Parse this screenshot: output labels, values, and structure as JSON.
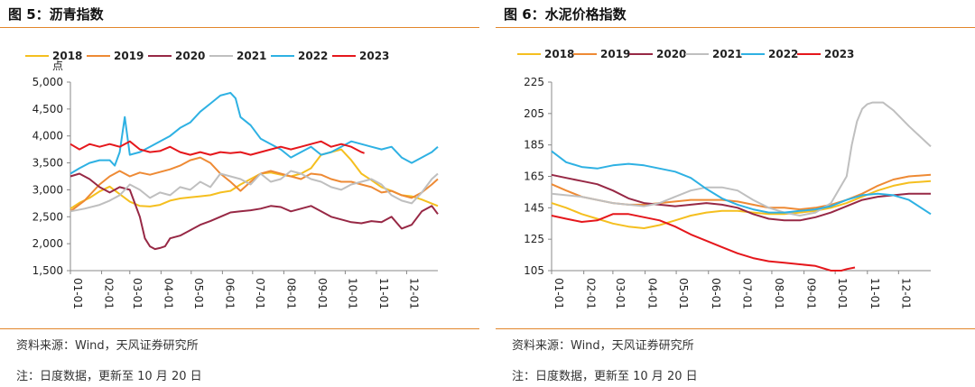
{
  "panels": [
    {
      "title": "图 5：沥青指数",
      "source": "资料来源：Wind，天风证券研究所",
      "note": "注：日度数据，更新至 10 月 20 日"
    },
    {
      "title": "图 6：水泥价格指数",
      "source": "资料来源：Wind，天风证券研究所",
      "note": "注：日度数据，更新至 10 月 20 日"
    }
  ],
  "colors": {
    "2018": "#f5bf1f",
    "2019": "#ee8a34",
    "2020": "#972845",
    "2021": "#bfbfbf",
    "2022": "#2eb1e3",
    "2023": "#e5171c",
    "rule": "#e2862a"
  },
  "chart_data": [
    {
      "type": "line",
      "title": "图 5：沥青指数",
      "ylabel": "点",
      "ylim": [
        1500,
        5000
      ],
      "yticks": [
        1500,
        2000,
        2500,
        3000,
        3500,
        4000,
        4500,
        5000
      ],
      "ytick_labels": [
        "1,500",
        "2,000",
        "2,500",
        "3,000",
        "3,500",
        "4,000",
        "4,500",
        "5,000"
      ],
      "x_ticks": [
        "01-01",
        "02-01",
        "03-01",
        "04-01",
        "05-01",
        "06-01",
        "07-01",
        "08-01",
        "09-01",
        "10-01",
        "11-01",
        "12-01"
      ],
      "xlim_days": [
        1,
        366
      ],
      "legend": "top",
      "series": [
        {
          "name": "2018",
          "x": [
            1,
            10,
            20,
            30,
            40,
            50,
            60,
            70,
            80,
            90,
            100,
            110,
            120,
            130,
            140,
            150,
            160,
            170,
            180,
            190,
            200,
            210,
            220,
            230,
            240,
            250,
            260,
            270,
            280,
            290,
            300,
            310,
            320,
            330,
            340,
            350,
            366
          ],
          "values": [
            2650,
            2760,
            2850,
            2970,
            3060,
            2920,
            2780,
            2700,
            2690,
            2720,
            2800,
            2840,
            2860,
            2880,
            2900,
            2950,
            2980,
            3100,
            3200,
            3300,
            3320,
            3280,
            3250,
            3300,
            3400,
            3650,
            3700,
            3750,
            3550,
            3300,
            3180,
            3050,
            2980,
            2900,
            2880,
            2820,
            2700
          ]
        },
        {
          "name": "2019",
          "x": [
            1,
            15,
            30,
            40,
            50,
            60,
            70,
            80,
            90,
            100,
            110,
            120,
            130,
            140,
            150,
            160,
            170,
            180,
            190,
            200,
            210,
            220,
            230,
            240,
            250,
            260,
            270,
            280,
            290,
            300,
            310,
            320,
            330,
            340,
            350,
            360,
            366
          ],
          "values": [
            2600,
            2800,
            3100,
            3250,
            3350,
            3250,
            3320,
            3280,
            3330,
            3380,
            3450,
            3550,
            3600,
            3500,
            3300,
            3150,
            2980,
            3150,
            3300,
            3350,
            3300,
            3250,
            3200,
            3300,
            3280,
            3200,
            3150,
            3150,
            3100,
            3050,
            2950,
            2980,
            2900,
            2850,
            2950,
            3100,
            3200
          ]
        },
        {
          "name": "2020",
          "x": [
            1,
            10,
            20,
            30,
            40,
            50,
            60,
            70,
            75,
            80,
            85,
            90,
            95,
            100,
            110,
            120,
            130,
            140,
            150,
            160,
            170,
            180,
            190,
            200,
            210,
            220,
            230,
            240,
            250,
            260,
            270,
            280,
            290,
            300,
            310,
            320,
            330,
            340,
            350,
            360,
            366
          ],
          "values": [
            3250,
            3300,
            3200,
            3050,
            2950,
            3050,
            3000,
            2500,
            2100,
            1950,
            1900,
            1920,
            1950,
            2100,
            2150,
            2250,
            2350,
            2420,
            2500,
            2580,
            2600,
            2620,
            2650,
            2700,
            2680,
            2600,
            2650,
            2700,
            2600,
            2500,
            2450,
            2400,
            2380,
            2420,
            2400,
            2500,
            2280,
            2350,
            2600,
            2700,
            2550
          ]
        },
        {
          "name": "2021",
          "x": [
            1,
            15,
            30,
            40,
            50,
            60,
            70,
            80,
            90,
            100,
            110,
            120,
            130,
            140,
            150,
            160,
            170,
            180,
            190,
            200,
            210,
            220,
            230,
            240,
            250,
            260,
            270,
            280,
            290,
            300,
            310,
            320,
            330,
            340,
            350,
            360,
            366
          ],
          "values": [
            2600,
            2650,
            2720,
            2800,
            2900,
            3100,
            3000,
            2850,
            2950,
            2900,
            3050,
            3000,
            3150,
            3050,
            3300,
            3250,
            3200,
            3100,
            3300,
            3150,
            3200,
            3350,
            3300,
            3200,
            3150,
            3050,
            3000,
            3100,
            3150,
            3200,
            3100,
            2900,
            2800,
            2750,
            2950,
            3200,
            3300
          ]
        },
        {
          "name": "2022",
          "x": [
            1,
            10,
            20,
            30,
            40,
            45,
            50,
            55,
            60,
            70,
            80,
            90,
            100,
            110,
            120,
            130,
            140,
            150,
            160,
            165,
            170,
            180,
            190,
            200,
            210,
            220,
            230,
            240,
            250,
            260,
            270,
            280,
            290,
            300,
            310,
            320,
            330,
            340,
            350,
            360,
            366
          ],
          "values": [
            3300,
            3400,
            3500,
            3550,
            3550,
            3450,
            3700,
            4350,
            3650,
            3700,
            3800,
            3900,
            4000,
            4150,
            4250,
            4450,
            4600,
            4750,
            4800,
            4700,
            4350,
            4200,
            3950,
            3850,
            3750,
            3600,
            3700,
            3800,
            3650,
            3700,
            3800,
            3900,
            3850,
            3800,
            3750,
            3800,
            3600,
            3500,
            3600,
            3700,
            3800
          ]
        },
        {
          "name": "2023",
          "x": [
            1,
            10,
            20,
            30,
            40,
            50,
            60,
            70,
            80,
            90,
            100,
            110,
            120,
            130,
            140,
            150,
            160,
            170,
            180,
            190,
            200,
            210,
            220,
            230,
            240,
            250,
            260,
            270,
            280,
            290,
            293
          ],
          "values": [
            3850,
            3750,
            3850,
            3800,
            3850,
            3800,
            3900,
            3750,
            3700,
            3720,
            3800,
            3700,
            3650,
            3700,
            3650,
            3700,
            3680,
            3700,
            3650,
            3700,
            3750,
            3800,
            3750,
            3800,
            3850,
            3900,
            3800,
            3850,
            3800,
            3700,
            3680
          ]
        }
      ]
    },
    {
      "type": "line",
      "title": "图 6：水泥价格指数",
      "ylim": [
        105,
        225
      ],
      "yticks": [
        105,
        125,
        145,
        165,
        185,
        205,
        225
      ],
      "ytick_labels": [
        "105",
        "125",
        "145",
        "165",
        "185",
        "205",
        "225"
      ],
      "x_ticks": [
        "01-01",
        "02-01",
        "03-01",
        "04-01",
        "05-01",
        "06-01",
        "07-01",
        "08-01",
        "09-01",
        "10-01",
        "11-01",
        "12-01"
      ],
      "xlim_days": [
        1,
        366
      ],
      "legend": "top",
      "series": [
        {
          "name": "2018",
          "x": [
            1,
            15,
            30,
            45,
            60,
            75,
            90,
            105,
            120,
            135,
            150,
            165,
            180,
            195,
            210,
            225,
            240,
            255,
            270,
            285,
            300,
            315,
            330,
            345,
            366
          ],
          "values": [
            148,
            145,
            141,
            138,
            135,
            133,
            132,
            134,
            137,
            140,
            142,
            143,
            143,
            142,
            141,
            141,
            142,
            143,
            145,
            148,
            152,
            156,
            159,
            161,
            162
          ]
        },
        {
          "name": "2019",
          "x": [
            1,
            15,
            30,
            45,
            60,
            75,
            90,
            105,
            120,
            135,
            150,
            165,
            180,
            195,
            210,
            225,
            240,
            255,
            270,
            285,
            300,
            315,
            330,
            345,
            366
          ],
          "values": [
            160,
            156,
            152,
            150,
            148,
            147,
            147,
            148,
            149,
            150,
            150,
            150,
            149,
            147,
            145,
            145,
            144,
            145,
            147,
            150,
            154,
            159,
            163,
            165,
            166
          ]
        },
        {
          "name": "2020",
          "x": [
            1,
            15,
            30,
            45,
            60,
            75,
            90,
            105,
            120,
            135,
            150,
            165,
            180,
            195,
            210,
            225,
            240,
            255,
            270,
            285,
            300,
            315,
            330,
            345,
            366
          ],
          "values": [
            166,
            164,
            162,
            160,
            156,
            151,
            148,
            147,
            146,
            147,
            148,
            147,
            145,
            141,
            138,
            137,
            137,
            139,
            142,
            146,
            150,
            152,
            153,
            154,
            154
          ]
        },
        {
          "name": "2021",
          "x": [
            1,
            15,
            30,
            45,
            60,
            75,
            90,
            105,
            120,
            135,
            150,
            165,
            180,
            195,
            210,
            225,
            240,
            255,
            270,
            285,
            290,
            295,
            300,
            305,
            310,
            320,
            330,
            345,
            366
          ],
          "values": [
            154,
            153,
            152,
            150,
            148,
            147,
            146,
            148,
            152,
            156,
            158,
            158,
            156,
            150,
            145,
            142,
            140,
            142,
            148,
            165,
            185,
            200,
            208,
            211,
            212,
            212,
            207,
            197,
            184
          ]
        },
        {
          "name": "2022",
          "x": [
            1,
            15,
            30,
            45,
            60,
            75,
            90,
            105,
            120,
            135,
            150,
            165,
            180,
            195,
            210,
            225,
            240,
            255,
            270,
            285,
            300,
            315,
            330,
            345,
            366
          ],
          "values": [
            181,
            174,
            171,
            170,
            172,
            173,
            172,
            170,
            168,
            164,
            157,
            151,
            147,
            144,
            142,
            142,
            143,
            144,
            146,
            150,
            153,
            154,
            153,
            150,
            141
          ]
        },
        {
          "name": "2023",
          "x": [
            1,
            15,
            30,
            45,
            60,
            75,
            90,
            105,
            120,
            135,
            150,
            165,
            180,
            195,
            210,
            225,
            240,
            255,
            270,
            280,
            285,
            293
          ],
          "values": [
            140,
            138,
            136,
            137,
            141,
            141,
            139,
            137,
            133,
            128,
            124,
            120,
            116,
            113,
            111,
            110,
            109,
            108,
            105,
            105,
            106,
            107
          ]
        }
      ]
    }
  ]
}
